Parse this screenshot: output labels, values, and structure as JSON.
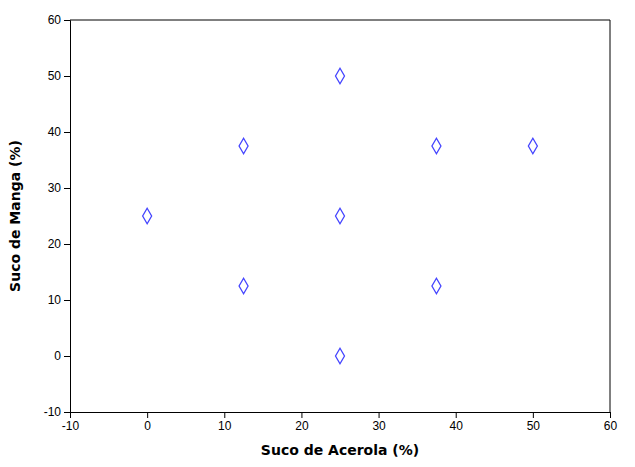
{
  "chart_data": {
    "type": "scatter",
    "xlabel": "Suco de Acerola (%)",
    "ylabel": "Suco de Manga (%)",
    "x": [
      0,
      12.5,
      12.5,
      25,
      25,
      25,
      37.5,
      37.5,
      50
    ],
    "values": [
      25,
      37.5,
      12.5,
      50,
      25,
      0,
      37.5,
      12.5,
      37.5
    ],
    "xlim": [
      -10,
      60
    ],
    "ylim": [
      -10,
      60
    ],
    "xticks": [
      -10,
      0,
      10,
      20,
      30,
      40,
      50,
      60
    ],
    "yticks": [
      -10,
      0,
      10,
      20,
      30,
      40,
      50,
      60
    ],
    "color": "#4444ff",
    "marker": "diamond",
    "grid": false
  }
}
